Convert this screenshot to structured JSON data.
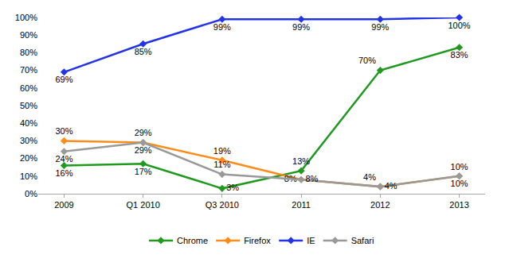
{
  "chart_data": {
    "type": "line",
    "categories": [
      "2009",
      "Q1 2010",
      "Q3 2010",
      "2011",
      "2012",
      "2013"
    ],
    "series": [
      {
        "name": "Chrome",
        "color": "#1f9a1f",
        "marker": "diamond",
        "line_style": "solid",
        "values": [
          16,
          17,
          3,
          13,
          70,
          83
        ],
        "value_labels": [
          "16%",
          "17%",
          "3%",
          "13%",
          "70%",
          "83%"
        ]
      },
      {
        "name": "Firefox",
        "color": "#ff8c1a",
        "marker": "diamond",
        "line_style": "solid",
        "values": [
          30,
          29,
          19,
          8,
          4,
          10
        ],
        "value_labels": [
          "30%",
          "29%",
          "19%",
          "8%",
          "4%",
          "10%"
        ]
      },
      {
        "name": "IE",
        "color": "#2233e8",
        "marker": "diamond",
        "line_style": "solid",
        "values": [
          69,
          85,
          99,
          99,
          99,
          100
        ],
        "value_labels": [
          "69%",
          "85%",
          "99%",
          "99%",
          "99%",
          "100%"
        ]
      },
      {
        "name": "Safari",
        "color": "#999999",
        "marker": "diamond",
        "line_style": "solid",
        "values": [
          24,
          29,
          11,
          8,
          4,
          10
        ],
        "value_labels": [
          "24%",
          "29%",
          "11%",
          "8%",
          "4%",
          "10%"
        ]
      }
    ],
    "ylim": [
      0,
      100
    ],
    "yticks": [
      {
        "value": 0,
        "label": "0%"
      },
      {
        "value": 10,
        "label": "10%"
      },
      {
        "value": 20,
        "label": "20%"
      },
      {
        "value": 30,
        "label": "30%"
      },
      {
        "value": 40,
        "label": "40%"
      },
      {
        "value": 50,
        "label": "50%"
      },
      {
        "value": 60,
        "label": "60%"
      },
      {
        "value": 70,
        "label": "70%"
      },
      {
        "value": 80,
        "label": "80%"
      },
      {
        "value": 90,
        "label": "90%"
      },
      {
        "value": 100,
        "label": "100%"
      }
    ],
    "grid": false,
    "legend": "bottom",
    "data_labels": true
  }
}
